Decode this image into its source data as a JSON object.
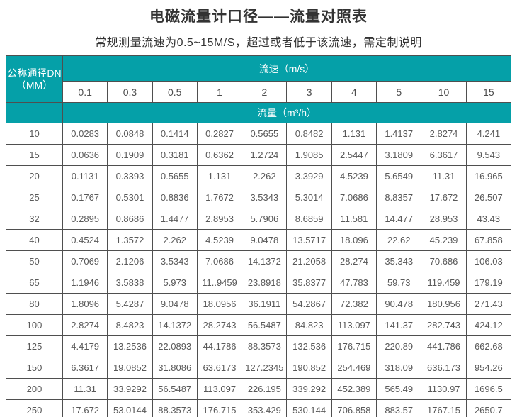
{
  "title": "电磁流量计口径——流量对照表",
  "subtitle": "常规测量流速为0.5~15M/S，超过或者低于该流速，需定制说明",
  "colors": {
    "header_teal": "#05a0a8",
    "border": "#4f4f4f",
    "title_text": "#333333",
    "data_text": "#595959"
  },
  "table": {
    "dn_header_line1": "公称通径DN",
    "dn_header_line2": "（MM）",
    "velocity_header": "流速（m/s）",
    "flow_header": "流量（m³/h）",
    "velocities": [
      "0.1",
      "0.3",
      "0.5",
      "1",
      "2",
      "3",
      "4",
      "5",
      "10",
      "15"
    ],
    "rows": [
      {
        "dn": "10",
        "values": [
          "0.0283",
          "0.0848",
          "0.1414",
          "0.2827",
          "0.5655",
          "0.8482",
          "1.131",
          "1.4137",
          "2.8274",
          "4.241"
        ]
      },
      {
        "dn": "15",
        "values": [
          "0.0636",
          "0.1909",
          "0.3181",
          "0.6362",
          "1.2724",
          "1.9085",
          "2.5447",
          "3.1809",
          "6.3617",
          "9.543"
        ]
      },
      {
        "dn": "20",
        "values": [
          "0.1131",
          "0.3393",
          "0.5655",
          "1.131",
          "2.262",
          "3.3929",
          "4.5239",
          "5.6549",
          "11.31",
          "16.965"
        ]
      },
      {
        "dn": "25",
        "values": [
          "0.1767",
          "0.5301",
          "0.8836",
          "1.7672",
          "3.5343",
          "5.3014",
          "7.0686",
          "8.8357",
          "17.672",
          "26.507"
        ]
      },
      {
        "dn": "32",
        "values": [
          "0.2895",
          "0.8686",
          "1.4477",
          "2.8953",
          "5.7906",
          "8.6859",
          "11.581",
          "14.477",
          "28.953",
          "43.43"
        ]
      },
      {
        "dn": "40",
        "values": [
          "0.4524",
          "1.3572",
          "2.262",
          "4.5239",
          "9.0478",
          "13.5717",
          "18.096",
          "22.62",
          "45.239",
          "67.858"
        ]
      },
      {
        "dn": "50",
        "values": [
          "0.7069",
          "2.1206",
          "3.5343",
          "7.0686",
          "14.1372",
          "21.2058",
          "28.274",
          "35.343",
          "70.686",
          "106.03"
        ]
      },
      {
        "dn": "65",
        "values": [
          "1.1946",
          "3.5838",
          "5.973",
          "11..9459",
          "23.8918",
          "35.8377",
          "47.783",
          "59.73",
          "119.459",
          "179.19"
        ]
      },
      {
        "dn": "80",
        "values": [
          "1.8096",
          "5.4287",
          "9.0478",
          "18.0956",
          "36.1911",
          "54.2867",
          "72.382",
          "90.478",
          "180.956",
          "271.43"
        ]
      },
      {
        "dn": "100",
        "values": [
          "2.8274",
          "8.4823",
          "14.1372",
          "28.2743",
          "56.5487",
          "84.823",
          "113.097",
          "141.37",
          "282.743",
          "424.12"
        ]
      },
      {
        "dn": "125",
        "values": [
          "4.4179",
          "13.2536",
          "22.0893",
          "44.1786",
          "88.3573",
          "132.536",
          "176.715",
          "220.89",
          "441.786",
          "662.68"
        ]
      },
      {
        "dn": "150",
        "values": [
          "6.3617",
          "19.0852",
          "31.8086",
          "63.6173",
          "127.2345",
          "190.852",
          "254.469",
          "318.09",
          "636.173",
          "954.26"
        ]
      },
      {
        "dn": "200",
        "values": [
          "11.31",
          "33.9292",
          "56.5487",
          "113.097",
          "226.195",
          "339.292",
          "452.389",
          "565.49",
          "1130.97",
          "1696.5"
        ]
      },
      {
        "dn": "250",
        "values": [
          "17.672",
          "53.0144",
          "88.3573",
          "176.715",
          "353.429",
          "530.144",
          "706.858",
          "883.57",
          "1767.15",
          "2650.7"
        ]
      }
    ]
  }
}
